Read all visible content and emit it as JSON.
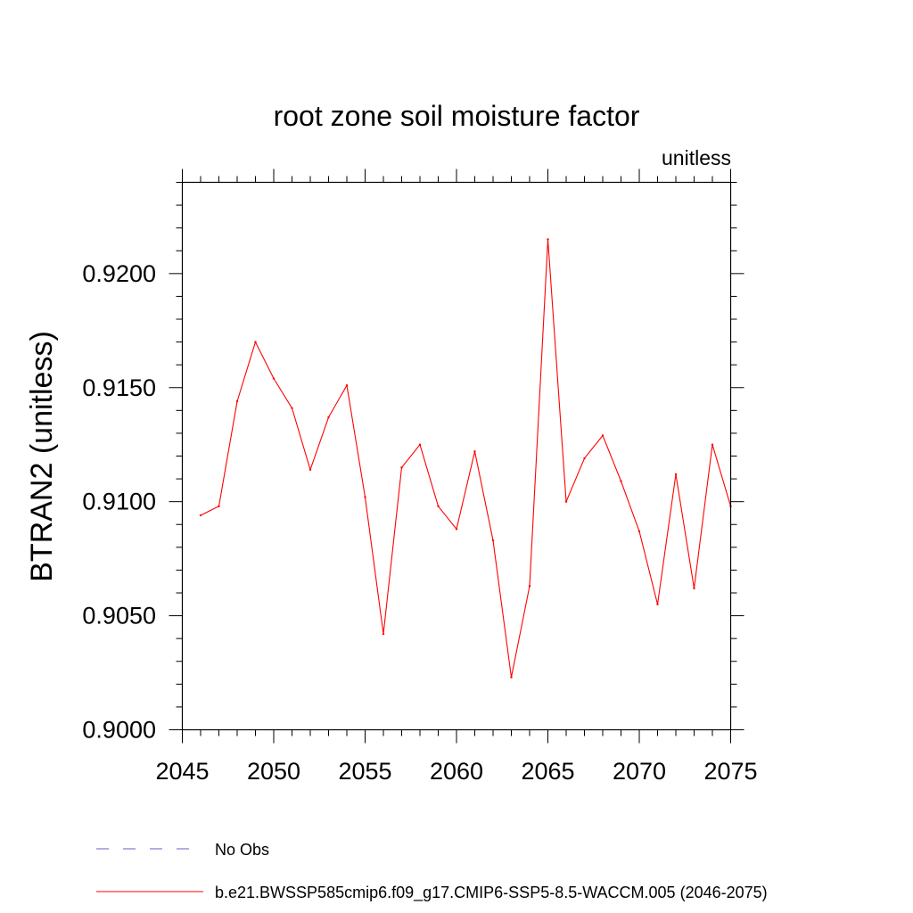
{
  "chart_data": {
    "type": "line",
    "title": "root zone soil moisture factor",
    "units_label": "unitless",
    "xlabel": "",
    "ylabel": "BTRAN2  (unitless)",
    "xlim": [
      2045,
      2075
    ],
    "ylim": [
      0.9,
      0.924
    ],
    "grid": false,
    "x_ticks": [
      2045,
      2050,
      2055,
      2060,
      2065,
      2070,
      2075
    ],
    "x_tick_labels": [
      "2045",
      "2050",
      "2055",
      "2060",
      "2065",
      "2070",
      "2075"
    ],
    "y_ticks": [
      0.9,
      0.905,
      0.91,
      0.915,
      0.92
    ],
    "y_tick_labels": [
      "0.9000",
      "0.9050",
      "0.9100",
      "0.9150",
      "0.9200"
    ],
    "x_minor_step": 1,
    "y_minor_step": 0.001,
    "series": [
      {
        "name": "b.e21.BWSSP585cmip6.f09_g17.CMIP6-SSP5-8.5-WACCM.005 (2046-2075)",
        "color": "#ff0000",
        "dash": "solid",
        "x": [
          2046,
          2047,
          2048,
          2049,
          2050,
          2051,
          2052,
          2053,
          2054,
          2055,
          2056,
          2057,
          2058,
          2059,
          2060,
          2061,
          2062,
          2063,
          2064,
          2065,
          2066,
          2067,
          2068,
          2069,
          2070,
          2071,
          2072,
          2073,
          2074,
          2075
        ],
        "values": [
          0.9094,
          0.9098,
          0.9144,
          0.917,
          0.9154,
          0.9141,
          0.9114,
          0.9137,
          0.9151,
          0.9102,
          0.9042,
          0.9115,
          0.9125,
          0.9098,
          0.9088,
          0.9122,
          0.9083,
          0.9023,
          0.9063,
          0.9215,
          0.91,
          0.9119,
          0.9129,
          0.9109,
          0.9087,
          0.9055,
          0.9112,
          0.9062,
          0.9125,
          0.9098
        ]
      },
      {
        "name": "No Obs",
        "color": "#6a5acd",
        "dash": "dashed",
        "x": [],
        "values": []
      }
    ],
    "legend": "bottom"
  }
}
